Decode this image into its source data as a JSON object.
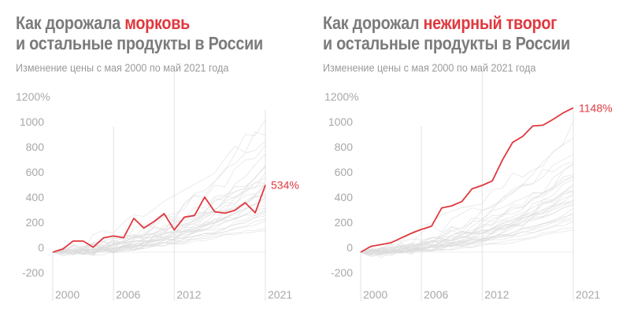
{
  "chart_data": [
    {
      "type": "line",
      "title_prefix": "Как дорожала ",
      "title_highlight": "морковь",
      "title_line2": "и остальные продукты в России",
      "subtitle": "Изменение цены с мая 2000 по май 2021 года",
      "ylim": [
        -200,
        1200
      ],
      "yticks": [
        "1200%",
        "1000",
        "800",
        "600",
        "400",
        "200",
        "0",
        "-200"
      ],
      "ytick_values": [
        1200,
        1000,
        800,
        600,
        400,
        200,
        0,
        -200
      ],
      "xticks": [
        "2000",
        "2006",
        "2012",
        "2021"
      ],
      "xtick_values": [
        2000,
        2006,
        2012,
        2021
      ],
      "x": [
        2000,
        2001,
        2002,
        2003,
        2004,
        2005,
        2006,
        2007,
        2008,
        2009,
        2010,
        2011,
        2012,
        2013,
        2014,
        2015,
        2016,
        2017,
        2018,
        2019,
        2020,
        2021
      ],
      "highlight_series": {
        "values": [
          0,
          25,
          88,
          88,
          40,
          113,
          129,
          115,
          269,
          192,
          244,
          306,
          177,
          279,
          292,
          438,
          321,
          310,
          333,
          394,
          313,
          534
        ],
        "color": "#e0383e"
      },
      "end_label": "534%",
      "background_series_final_values": [
        1100,
        980,
        900,
        820,
        760,
        700,
        680,
        650,
        620,
        600,
        580,
        560,
        540,
        520,
        500,
        480,
        460,
        450,
        430,
        410,
        400,
        380,
        360,
        340,
        320,
        300,
        280,
        260,
        240,
        200,
        180
      ],
      "background_color": "#dcdcdc",
      "grid": false
    },
    {
      "type": "line",
      "title_prefix": "Как дорожал ",
      "title_highlight": "нежирный творог",
      "title_line2": "и остальные продукты в России",
      "subtitle": "Изменение цены с мая 2000 по май 2021 года",
      "ylim": [
        -200,
        1200
      ],
      "yticks": [
        "1200%",
        "1000",
        "800",
        "600",
        "400",
        "200",
        "0",
        "-200"
      ],
      "ytick_values": [
        1200,
        1000,
        800,
        600,
        400,
        200,
        0,
        -200
      ],
      "xticks": [
        "2000",
        "2006",
        "2012",
        "2021"
      ],
      "xtick_values": [
        2000,
        2006,
        2012,
        2021
      ],
      "x": [
        2000,
        2001,
        2002,
        2003,
        2004,
        2005,
        2006,
        2007,
        2008,
        2009,
        2010,
        2011,
        2012,
        2013,
        2014,
        2015,
        2016,
        2017,
        2018,
        2019,
        2020,
        2021
      ],
      "highlight_series": {
        "values": [
          0,
          46,
          60,
          75,
          113,
          150,
          181,
          206,
          352,
          369,
          404,
          504,
          531,
          567,
          733,
          873,
          921,
          1004,
          1010,
          1056,
          1108,
          1148
        ],
        "color": "#e0383e"
      },
      "end_label": "1148%",
      "background_series_final_values": [
        1000,
        900,
        820,
        760,
        700,
        680,
        650,
        620,
        600,
        580,
        560,
        540,
        520,
        500,
        480,
        460,
        450,
        430,
        410,
        400,
        380,
        360,
        340,
        320,
        300,
        280,
        260,
        240,
        200,
        180
      ],
      "background_color": "#dcdcdc",
      "grid": false
    }
  ]
}
